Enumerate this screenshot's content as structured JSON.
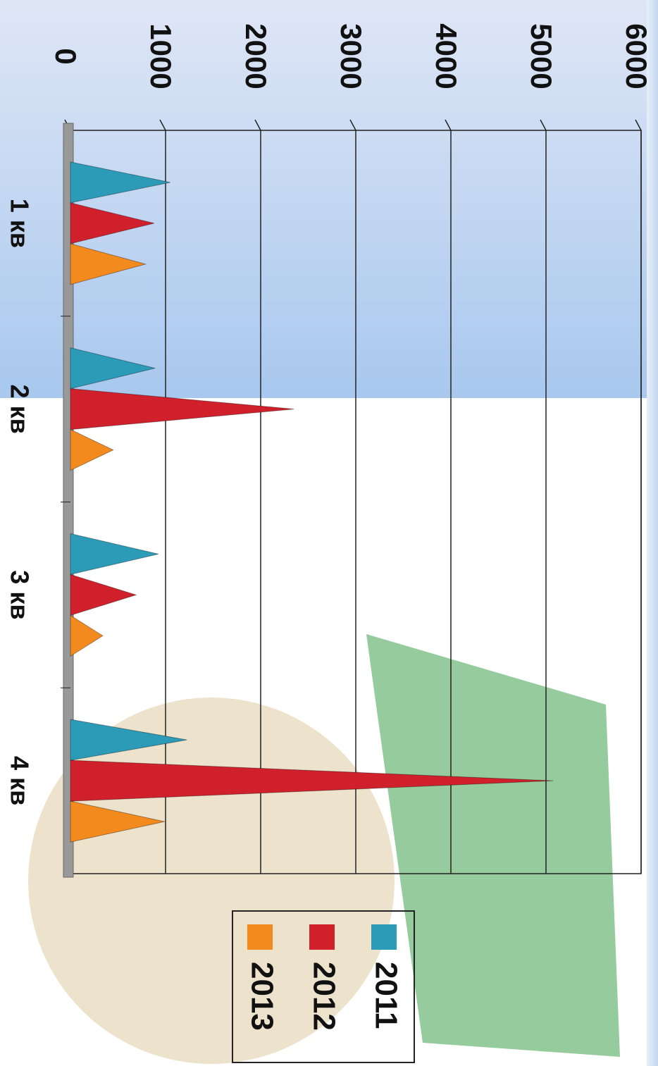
{
  "chart_data": {
    "type": "bar",
    "categories": [
      "1 кв",
      "2 кв",
      "3 кв",
      "4 кв"
    ],
    "series": [
      {
        "name": "2011",
        "color": "#2b9bb8",
        "values": [
          1050,
          890,
          925,
          1225
        ]
      },
      {
        "name": "2012",
        "color": "#d0202c",
        "values": [
          880,
          2350,
          690,
          5075
        ]
      },
      {
        "name": "2013",
        "color": "#f28a1e",
        "values": [
          790,
          450,
          340,
          990
        ]
      }
    ],
    "ylim": [
      0,
      6000
    ],
    "yticks": [
      0,
      1000,
      2000,
      3000,
      4000,
      5000,
      6000
    ],
    "grid": true
  }
}
